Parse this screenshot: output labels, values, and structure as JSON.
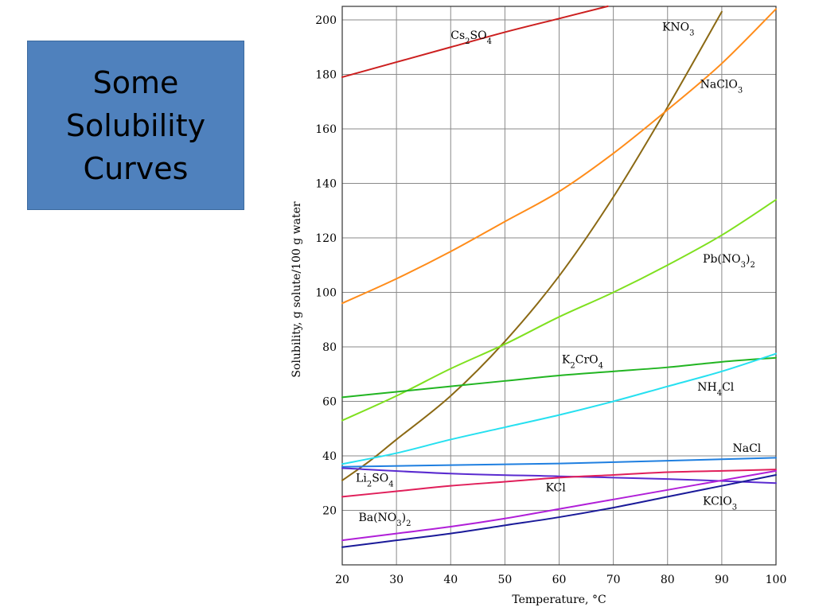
{
  "slide": {
    "title_lines": [
      "Some",
      "Solubility",
      "Curves"
    ]
  },
  "chart_data": {
    "type": "line",
    "xlabel": "Temperature, °C",
    "ylabel": "Solubility, g solute/100 g water",
    "xlim": [
      20,
      100
    ],
    "ylim": [
      0,
      205
    ],
    "x_ticks": [
      20,
      30,
      40,
      50,
      60,
      70,
      80,
      90,
      100
    ],
    "y_ticks": [
      20,
      40,
      60,
      80,
      100,
      120,
      140,
      160,
      180,
      200
    ],
    "grid": true,
    "legend": "inline labels",
    "series": [
      {
        "name": "Cs₂SO₄",
        "label_parts": [
          [
            "Cs",
            ""
          ],
          [
            "2",
            "sub"
          ],
          [
            "SO",
            ""
          ],
          [
            "4",
            "sub"
          ]
        ],
        "label_at": [
          40,
          193
        ],
        "color": "#cc1f1f",
        "x": [
          20,
          30,
          40,
          50,
          60,
          69
        ],
        "y": [
          179,
          184.5,
          190,
          195.5,
          200.5,
          205
        ]
      },
      {
        "name": "KNO₃",
        "label_parts": [
          [
            "KNO",
            ""
          ],
          [
            "3",
            "sub"
          ]
        ],
        "label_at": [
          79,
          196
        ],
        "color": "#8b6914",
        "x": [
          20,
          25,
          30,
          40,
          50,
          60,
          70,
          80,
          90
        ],
        "y": [
          31,
          38,
          46,
          62,
          82,
          106,
          135,
          168,
          203
        ]
      },
      {
        "name": "NaClO₃",
        "label_parts": [
          [
            "NaClO",
            ""
          ],
          [
            "3",
            "sub"
          ]
        ],
        "label_at": [
          86,
          175
        ],
        "color": "#ff8c1a",
        "x": [
          20,
          30,
          40,
          50,
          60,
          70,
          80,
          90,
          100
        ],
        "y": [
          96,
          105,
          115,
          126,
          137,
          151,
          167,
          184,
          204
        ]
      },
      {
        "name": "Pb(NO₃)₂",
        "label_parts": [
          [
            "Pb(NO",
            ""
          ],
          [
            "3",
            "sub"
          ],
          [
            ")",
            ""
          ],
          [
            "2",
            "sub"
          ]
        ],
        "label_at": [
          86.5,
          111
        ],
        "color": "#7fe01f",
        "x": [
          20,
          30,
          40,
          50,
          60,
          70,
          80,
          90,
          100
        ],
        "y": [
          53,
          62,
          72,
          81,
          91,
          100,
          110,
          121,
          134
        ]
      },
      {
        "name": "K₂CrO₄",
        "label_parts": [
          [
            "K",
            ""
          ],
          [
            "2",
            "sub"
          ],
          [
            "CrO",
            ""
          ],
          [
            "4",
            "sub"
          ]
        ],
        "label_at": [
          60.5,
          74
        ],
        "color": "#22b522",
        "x": [
          20,
          30,
          40,
          50,
          60,
          70,
          80,
          90,
          100
        ],
        "y": [
          61.5,
          63.5,
          65.5,
          67.5,
          69.5,
          71,
          72.5,
          74.5,
          76
        ]
      },
      {
        "name": "NH₄Cl",
        "label_parts": [
          [
            "NH",
            ""
          ],
          [
            "4",
            "sub"
          ],
          [
            "Cl",
            ""
          ]
        ],
        "label_at": [
          85.5,
          64
        ],
        "color": "#26e0f0",
        "x": [
          20,
          30,
          40,
          50,
          60,
          70,
          80,
          90,
          100
        ],
        "y": [
          37,
          41,
          46,
          50.5,
          55,
          60,
          65.5,
          71,
          77.5
        ]
      },
      {
        "name": "NaCl",
        "label_parts": [
          [
            "NaCl",
            ""
          ]
        ],
        "label_at": [
          92,
          41.5
        ],
        "color": "#1f7fe0",
        "x": [
          20,
          40,
          60,
          80,
          100
        ],
        "y": [
          36,
          36.6,
          37.2,
          38.2,
          39.3
        ]
      },
      {
        "name": "Li₂SO₄",
        "label_parts": [
          [
            "Li",
            ""
          ],
          [
            "2",
            "sub"
          ],
          [
            "SO",
            ""
          ],
          [
            "4",
            "sub"
          ]
        ],
        "label_at": [
          22.5,
          30.5
        ],
        "color": "#5a2bd0",
        "x": [
          20,
          40,
          60,
          80,
          100
        ],
        "y": [
          35.5,
          33.5,
          32.5,
          31.5,
          30
        ]
      },
      {
        "name": "KCl",
        "label_parts": [
          [
            "KCl",
            ""
          ]
        ],
        "label_at": [
          57.5,
          27
        ],
        "color": "#e01f5a",
        "x": [
          20,
          30,
          40,
          50,
          60,
          70,
          80,
          90,
          100
        ],
        "y": [
          25,
          27,
          29,
          30.5,
          32,
          33,
          34,
          34.5,
          35
        ]
      },
      {
        "name": "KClO₃",
        "label_parts": [
          [
            "KClO",
            ""
          ],
          [
            "3",
            "sub"
          ]
        ],
        "label_at": [
          86.5,
          22
        ],
        "color": "#1a1a99",
        "x": [
          20,
          30,
          40,
          50,
          60,
          70,
          80,
          90,
          100
        ],
        "y": [
          6.5,
          9,
          11.5,
          14.5,
          17.5,
          21,
          25,
          29,
          33
        ]
      },
      {
        "name": "Ba(NO₃)₂",
        "label_parts": [
          [
            "Ba(NO",
            ""
          ],
          [
            "3",
            "sub"
          ],
          [
            ")",
            ""
          ],
          [
            "2",
            "sub"
          ]
        ],
        "label_at": [
          23,
          16
        ],
        "color": "#b01fd8",
        "x": [
          20,
          30,
          40,
          50,
          60,
          70,
          80,
          90,
          100
        ],
        "y": [
          9,
          11.5,
          14,
          17,
          20.5,
          24,
          27.5,
          31,
          34.5
        ]
      }
    ]
  }
}
